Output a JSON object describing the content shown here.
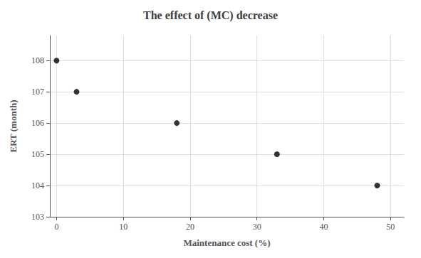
{
  "chart_data": {
    "type": "scatter",
    "title": "The effect of (MC) decrease",
    "xlabel": "Maintenance cost (%)",
    "ylabel": "ERT (month)",
    "x": [
      0,
      3,
      18,
      33,
      48
    ],
    "values": [
      108,
      107,
      106,
      105,
      104
    ],
    "color": "black",
    "xlim": [
      -1,
      52
    ],
    "ylim": [
      103,
      108.8
    ],
    "xticks": [
      0,
      10,
      20,
      30,
      40,
      50
    ],
    "yticks": [
      103,
      104,
      105,
      106,
      107,
      108
    ],
    "grid": true
  }
}
